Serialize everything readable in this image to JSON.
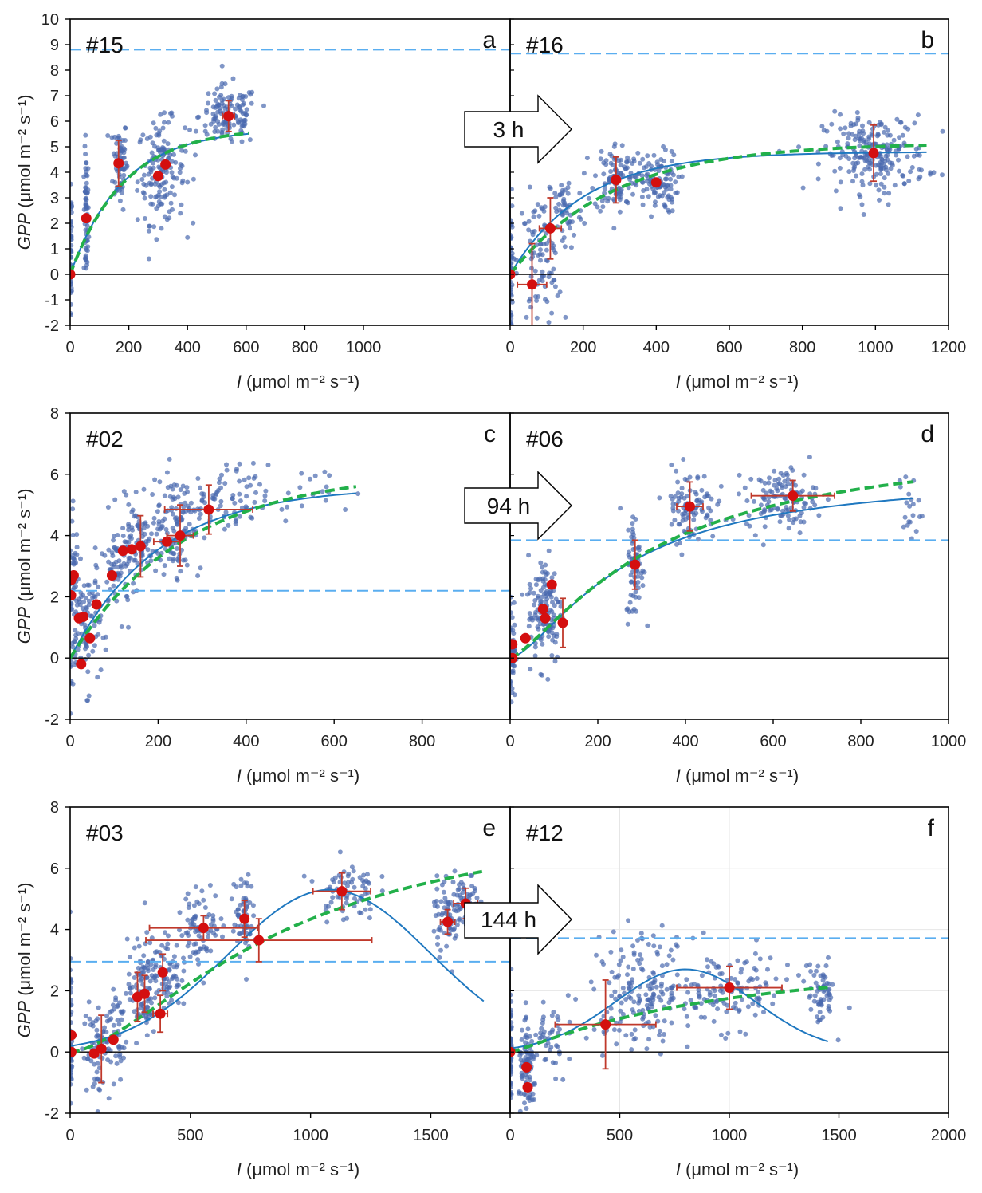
{
  "figure": {
    "arrows": [
      "3 h",
      "94 h",
      "144 h"
    ],
    "colors": {
      "scatter": "#4a6aaf",
      "mean": "#d40f0f",
      "errorbar": "#c0392b",
      "fit_solid": "#1f78c0",
      "fit_dashed": "#22b04a",
      "ref_line": "#5aaef0"
    }
  },
  "rows": [
    {
      "ylabel_italic": "GPP",
      "ylabel_rest": " (μmol m⁻² s⁻¹)",
      "xlabel_italic": "I",
      "xlabel_rest": " (μmol m⁻² s⁻¹)"
    },
    {
      "ylabel_italic": "GPP",
      "ylabel_rest": " (μmol m⁻² s⁻¹)",
      "xlabel_italic": "I",
      "xlabel_rest": " (μmol m⁻² s⁻¹)"
    },
    {
      "ylabel_italic": "GPP",
      "ylabel_rest": " (μmol m⁻² s⁻¹)",
      "xlabel_italic": "I",
      "xlabel_rest": " (μmol m⁻² s⁻¹)"
    }
  ],
  "chart_data": [
    {
      "type": "scatter",
      "id": "#15",
      "letter": "a",
      "xlim": [
        0,
        1500
      ],
      "ylim": [
        -2,
        10
      ],
      "xticks": [
        0,
        200,
        400,
        600,
        800,
        1000
      ],
      "xtick_labels": [
        "0",
        "200",
        "400",
        "600",
        "800",
        "1000"
      ],
      "yticks": [
        -2,
        -1,
        0,
        1,
        2,
        3,
        4,
        5,
        6,
        7,
        8,
        9,
        10
      ],
      "ytick_labels": [
        "-2",
        "-1",
        "0",
        "1",
        "2",
        "3",
        "4",
        "5",
        "6",
        "7",
        "8",
        "9",
        "10"
      ],
      "clusters": [
        {
          "x": 3,
          "y": 0.5,
          "sx": 1.5,
          "sy": 1.5,
          "n": 50
        },
        {
          "x": 55,
          "y": 2.2,
          "sx": 4,
          "sy": 1.3,
          "n": 60
        },
        {
          "x": 170,
          "y": 4.4,
          "sx": 12,
          "sy": 0.9,
          "n": 70
        },
        {
          "x": 310,
          "y": 4.0,
          "sx": 40,
          "sy": 1.0,
          "n": 150
        },
        {
          "x": 540,
          "y": 6.2,
          "sx": 50,
          "sy": 0.6,
          "n": 130
        }
      ],
      "means": [
        {
          "x": 0,
          "y": 0,
          "xerr": 0,
          "yerr": 0
        },
        {
          "x": 55,
          "y": 2.2,
          "xerr": 0,
          "yerr": 0
        },
        {
          "x": 165,
          "y": 4.35,
          "xerr": 0,
          "yerr": 0.9
        },
        {
          "x": 300,
          "y": 3.85,
          "xerr": 0,
          "yerr": 0
        },
        {
          "x": 325,
          "y": 4.3,
          "xerr": 0,
          "yerr": 0
        },
        {
          "x": 540,
          "y": 6.2,
          "xerr": 20,
          "yerr": 0.6
        }
      ],
      "fit_solid": {
        "model": "exp",
        "pmax": 5.7,
        "k": 180,
        "xmax": 610
      },
      "fit_dashed": {
        "model": "exp",
        "pmax": 5.75,
        "k": 185,
        "xmax": 610
      },
      "ref_line": 8.8
    },
    {
      "type": "scatter",
      "id": "#16",
      "letter": "b",
      "xlim": [
        0,
        1200
      ],
      "ylim": [
        -2,
        10
      ],
      "xticks": [
        0,
        200,
        400,
        600,
        800,
        1000,
        1200
      ],
      "xtick_labels": [
        "0",
        "200",
        "400",
        "600",
        "800",
        "1000",
        "1200"
      ],
      "yticks": [],
      "ytick_labels": [],
      "clusters": [
        {
          "x": 3,
          "y": 0.0,
          "sx": 2,
          "sy": 1.4,
          "n": 50
        },
        {
          "x": 80,
          "y": 0.5,
          "sx": 30,
          "sy": 1.3,
          "n": 90
        },
        {
          "x": 150,
          "y": 2.5,
          "sx": 25,
          "sy": 0.8,
          "n": 50
        },
        {
          "x": 290,
          "y": 3.8,
          "sx": 30,
          "sy": 0.7,
          "n": 100
        },
        {
          "x": 400,
          "y": 3.6,
          "sx": 30,
          "sy": 0.6,
          "n": 110
        },
        {
          "x": 1000,
          "y": 4.7,
          "sx": 70,
          "sy": 0.75,
          "n": 230
        }
      ],
      "means": [
        {
          "x": 0,
          "y": 0,
          "xerr": 0,
          "yerr": 0
        },
        {
          "x": 60,
          "y": -0.4,
          "xerr": 40,
          "yerr": 1.6
        },
        {
          "x": 110,
          "y": 1.8,
          "xerr": 30,
          "yerr": 1.2
        },
        {
          "x": 290,
          "y": 3.7,
          "xerr": 0,
          "yerr": 0.9
        },
        {
          "x": 400,
          "y": 3.6,
          "xerr": 0,
          "yerr": 0
        },
        {
          "x": 995,
          "y": 4.75,
          "xerr": 0,
          "yerr": 1.1
        }
      ],
      "fit_solid": {
        "model": "exp",
        "pmax": 4.8,
        "k": 200,
        "xmax": 1140
      },
      "fit_dashed": {
        "model": "exp",
        "pmax": 5.15,
        "k": 280,
        "xmax": 1140
      },
      "ref_line": 8.65
    },
    {
      "type": "scatter",
      "id": "#02",
      "letter": "c",
      "xlim": [
        0,
        1000
      ],
      "ylim": [
        -2,
        8
      ],
      "xticks": [
        0,
        200,
        400,
        600,
        800
      ],
      "xtick_labels": [
        "0",
        "200",
        "400",
        "600",
        "800"
      ],
      "yticks": [
        -2,
        0,
        2,
        4,
        6,
        8
      ],
      "ytick_labels": [
        "-2",
        "0",
        "2",
        "4",
        "6",
        "8"
      ],
      "clusters": [
        {
          "x": 8,
          "y": 2.0,
          "sx": 6,
          "sy": 1.3,
          "n": 60
        },
        {
          "x": 40,
          "y": 1.0,
          "sx": 15,
          "sy": 1.0,
          "n": 80
        },
        {
          "x": 110,
          "y": 3.0,
          "sx": 20,
          "sy": 0.8,
          "n": 70
        },
        {
          "x": 160,
          "y": 3.7,
          "sx": 25,
          "sy": 0.7,
          "n": 80
        },
        {
          "x": 240,
          "y": 4.4,
          "sx": 30,
          "sy": 0.8,
          "n": 120
        },
        {
          "x": 350,
          "y": 5.1,
          "sx": 50,
          "sy": 0.6,
          "n": 80
        },
        {
          "x": 550,
          "y": 5.4,
          "sx": 50,
          "sy": 0.4,
          "n": 15
        }
      ],
      "means": [
        {
          "x": 2,
          "y": 2.55,
          "xerr": 0,
          "yerr": 0
        },
        {
          "x": 2,
          "y": 2.05,
          "xerr": 0,
          "yerr": 0
        },
        {
          "x": 8,
          "y": 2.7,
          "xerr": 0,
          "yerr": 0
        },
        {
          "x": 20,
          "y": 1.3,
          "xerr": 0,
          "yerr": 0
        },
        {
          "x": 25,
          "y": -0.2,
          "xerr": 0,
          "yerr": 0
        },
        {
          "x": 30,
          "y": 1.35,
          "xerr": 0,
          "yerr": 0
        },
        {
          "x": 45,
          "y": 0.65,
          "xerr": 0,
          "yerr": 0
        },
        {
          "x": 60,
          "y": 1.75,
          "xerr": 0,
          "yerr": 0
        },
        {
          "x": 95,
          "y": 2.7,
          "xerr": 0,
          "yerr": 0
        },
        {
          "x": 120,
          "y": 3.5,
          "xerr": 0,
          "yerr": 0
        },
        {
          "x": 140,
          "y": 3.55,
          "xerr": 0,
          "yerr": 0
        },
        {
          "x": 160,
          "y": 3.65,
          "xerr": 0,
          "yerr": 1.0
        },
        {
          "x": 220,
          "y": 3.8,
          "xerr": 30,
          "yerr": 0
        },
        {
          "x": 250,
          "y": 4.0,
          "xerr": 30,
          "yerr": 1.0
        },
        {
          "x": 315,
          "y": 4.85,
          "xerr": 100,
          "yerr": 0.8
        }
      ],
      "fit_solid": {
        "model": "exp",
        "pmax": 5.6,
        "k": 200,
        "xmax": 650
      },
      "fit_dashed": {
        "model": "exp",
        "pmax": 6.1,
        "k": 260,
        "xmax": 650
      },
      "ref_line": 2.2
    },
    {
      "type": "scatter",
      "id": "#06",
      "letter": "d",
      "xlim": [
        0,
        1000
      ],
      "ylim": [
        -2,
        8
      ],
      "xticks": [
        0,
        200,
        400,
        600,
        800,
        1000
      ],
      "xtick_labels": [
        "0",
        "200",
        "400",
        "600",
        "800",
        "1000"
      ],
      "yticks": [],
      "ytick_labels": [],
      "clusters": [
        {
          "x": 5,
          "y": 0.3,
          "sx": 4,
          "sy": 0.8,
          "n": 50
        },
        {
          "x": 80,
          "y": 1.6,
          "sx": 20,
          "sy": 0.9,
          "n": 130
        },
        {
          "x": 285,
          "y": 3.0,
          "sx": 10,
          "sy": 0.9,
          "n": 70
        },
        {
          "x": 410,
          "y": 5.0,
          "sx": 30,
          "sy": 0.6,
          "n": 100
        },
        {
          "x": 620,
          "y": 5.2,
          "sx": 40,
          "sy": 0.5,
          "n": 120
        },
        {
          "x": 910,
          "y": 5.0,
          "sx": 12,
          "sy": 0.6,
          "n": 20
        }
      ],
      "means": [
        {
          "x": 5,
          "y": 0.0,
          "xerr": 0,
          "yerr": 0
        },
        {
          "x": 5,
          "y": 0.45,
          "xerr": 0,
          "yerr": 0
        },
        {
          "x": 35,
          "y": 0.65,
          "xerr": 0,
          "yerr": 0
        },
        {
          "x": 75,
          "y": 1.6,
          "xerr": 0,
          "yerr": 0
        },
        {
          "x": 80,
          "y": 1.3,
          "xerr": 0,
          "yerr": 0
        },
        {
          "x": 95,
          "y": 2.4,
          "xerr": 0,
          "yerr": 0
        },
        {
          "x": 120,
          "y": 1.15,
          "xerr": 0,
          "yerr": 0.8
        },
        {
          "x": 285,
          "y": 3.05,
          "xerr": 0,
          "yerr": 0.8
        },
        {
          "x": 410,
          "y": 4.95,
          "xerr": 30,
          "yerr": 0.8
        },
        {
          "x": 645,
          "y": 5.3,
          "xerr": 95,
          "yerr": 0.5
        }
      ],
      "fit_solid": {
        "model": "hill",
        "pmax": 6.0,
        "k": 260,
        "n": 1.5,
        "xmax": 920
      },
      "fit_dashed": {
        "model": "hill",
        "pmax": 7.2,
        "k": 330,
        "n": 1.35,
        "xmax": 920
      },
      "ref_line": 3.85
    },
    {
      "type": "scatter",
      "id": "#03",
      "letter": "e",
      "xlim": [
        0,
        1830
      ],
      "ylim": [
        -2,
        8
      ],
      "xticks": [
        0,
        500,
        1000,
        1500
      ],
      "xtick_labels": [
        "0",
        "500",
        "1000",
        "1500"
      ],
      "yticks": [
        -2,
        0,
        2,
        4,
        6,
        8
      ],
      "ytick_labels": [
        "-2",
        "0",
        "2",
        "4",
        "6",
        "8"
      ],
      "clusters": [
        {
          "x": 3,
          "y": 0.3,
          "sx": 2,
          "sy": 1.2,
          "n": 50
        },
        {
          "x": 110,
          "y": 0.0,
          "sx": 30,
          "sy": 0.9,
          "n": 70
        },
        {
          "x": 190,
          "y": 0.8,
          "sx": 25,
          "sy": 0.8,
          "n": 40
        },
        {
          "x": 300,
          "y": 2.0,
          "sx": 30,
          "sy": 0.8,
          "n": 100
        },
        {
          "x": 400,
          "y": 2.6,
          "sx": 30,
          "sy": 0.6,
          "n": 70
        },
        {
          "x": 550,
          "y": 4.1,
          "sx": 50,
          "sy": 0.6,
          "n": 80
        },
        {
          "x": 720,
          "y": 4.5,
          "sx": 20,
          "sy": 0.7,
          "n": 60
        },
        {
          "x": 1150,
          "y": 5.3,
          "sx": 60,
          "sy": 0.5,
          "n": 70
        },
        {
          "x": 1570,
          "y": 4.5,
          "sx": 30,
          "sy": 0.6,
          "n": 70
        },
        {
          "x": 1650,
          "y": 4.8,
          "sx": 25,
          "sy": 0.5,
          "n": 50
        }
      ],
      "means": [
        {
          "x": 5,
          "y": 0.55,
          "xerr": 0,
          "yerr": 0
        },
        {
          "x": 5,
          "y": 0.0,
          "xerr": 0,
          "yerr": 0
        },
        {
          "x": 100,
          "y": -0.05,
          "xerr": 0,
          "yerr": 0
        },
        {
          "x": 130,
          "y": 0.1,
          "xerr": 0,
          "yerr": 1.1
        },
        {
          "x": 180,
          "y": 0.4,
          "xerr": 0,
          "yerr": 0
        },
        {
          "x": 280,
          "y": 1.8,
          "xerr": 0,
          "yerr": 0.8
        },
        {
          "x": 310,
          "y": 1.9,
          "xerr": 0,
          "yerr": 0.6
        },
        {
          "x": 375,
          "y": 1.25,
          "xerr": 30,
          "yerr": 0.6
        },
        {
          "x": 385,
          "y": 2.6,
          "xerr": 0,
          "yerr": 0.6
        },
        {
          "x": 555,
          "y": 4.05,
          "xerr": 225,
          "yerr": 0.4
        },
        {
          "x": 725,
          "y": 4.35,
          "xerr": 0,
          "yerr": 0.6
        },
        {
          "x": 785,
          "y": 3.65,
          "xerr": 470,
          "yerr": 0.7
        },
        {
          "x": 1130,
          "y": 5.25,
          "xerr": 120,
          "yerr": 0.6
        },
        {
          "x": 1570,
          "y": 4.25,
          "xerr": 30,
          "yerr": 0.4
        },
        {
          "x": 1645,
          "y": 4.85,
          "xerr": 50,
          "yerr": 0.5
        }
      ],
      "fit_solid": {
        "model": "gauss",
        "a": 5.3,
        "mu": 1080,
        "sigma": 420,
        "xmax": 1720
      },
      "fit_dashed": {
        "model": "hill",
        "pmax": 8.0,
        "k": 900,
        "n": 1.6,
        "xmax": 1730
      },
      "ref_line": 2.95
    },
    {
      "type": "scatter",
      "id": "#12",
      "letter": "f",
      "xlim": [
        0,
        2000
      ],
      "ylim": [
        -2,
        8
      ],
      "xticks": [
        0,
        500,
        1000,
        1500,
        2000
      ],
      "xtick_labels": [
        "0",
        "500",
        "1000",
        "1500",
        "2000"
      ],
      "yticks": [],
      "ytick_labels": [],
      "clusters": [
        {
          "x": 3,
          "y": 0.0,
          "sx": 2,
          "sy": 1.0,
          "n": 60
        },
        {
          "x": 80,
          "y": -0.7,
          "sx": 20,
          "sy": 0.7,
          "n": 90
        },
        {
          "x": 180,
          "y": 0.3,
          "sx": 40,
          "sy": 0.8,
          "n": 40
        },
        {
          "x": 600,
          "y": 2.0,
          "sx": 120,
          "sy": 0.9,
          "n": 180
        },
        {
          "x": 1000,
          "y": 2.0,
          "sx": 150,
          "sy": 0.6,
          "n": 120
        },
        {
          "x": 1420,
          "y": 1.9,
          "sx": 30,
          "sy": 0.5,
          "n": 60
        }
      ],
      "means": [
        {
          "x": 0,
          "y": 0,
          "xerr": 0,
          "yerr": 0
        },
        {
          "x": 75,
          "y": -0.5,
          "xerr": 0,
          "yerr": 0
        },
        {
          "x": 80,
          "y": -1.15,
          "xerr": 0,
          "yerr": 0
        },
        {
          "x": 435,
          "y": 0.9,
          "xerr": 230,
          "yerr": 1.45
        },
        {
          "x": 1000,
          "y": 2.1,
          "xerr": 240,
          "yerr": 0.7
        }
      ],
      "fit_solid": {
        "model": "gauss",
        "a": 2.7,
        "mu": 800,
        "sigma": 320,
        "xmax": 1450
      },
      "fit_dashed": {
        "model": "hill",
        "pmax": 3.3,
        "k": 900,
        "n": 1.2,
        "xmax": 1450
      },
      "ref_line": 3.72
    }
  ]
}
